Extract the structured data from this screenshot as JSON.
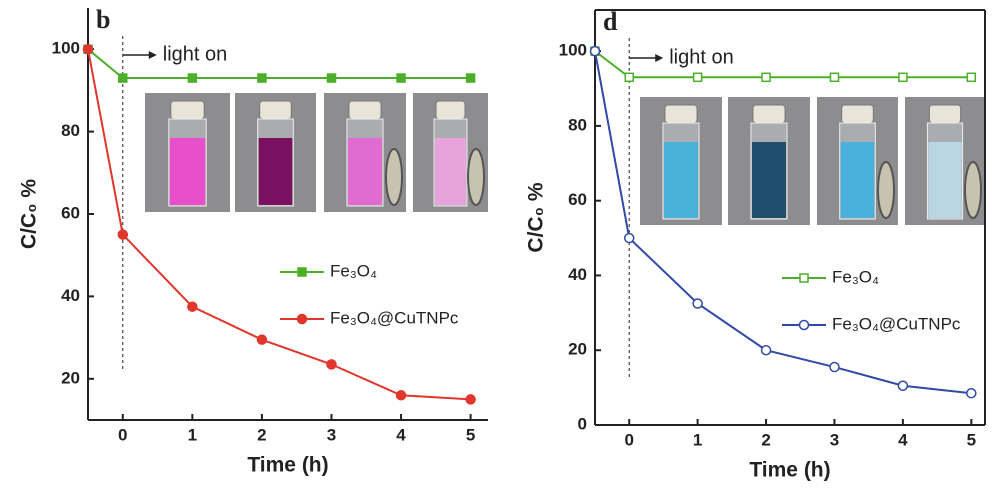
{
  "chart_data": [
    {
      "type": "line",
      "panel_label": "b",
      "annotation": "light on",
      "xlabel": "Time (h)",
      "ylabel": "C/C₀ %",
      "x": [
        -0.5,
        0,
        1,
        2,
        3,
        4,
        5
      ],
      "xlim": [
        -0.5,
        5.25
      ],
      "xticks": [
        0,
        1,
        2,
        3,
        4,
        5
      ],
      "ylim": [
        10,
        110
      ],
      "yticks": [
        20,
        40,
        60,
        80,
        100
      ],
      "series": [
        {
          "name": "Fe₃O₄",
          "color": "#4caf2a",
          "marker": "square",
          "marker_fill": "filled",
          "values": [
            100,
            93,
            93,
            93,
            93,
            93,
            93
          ]
        },
        {
          "name": "Fe₃O₄@CuTNPc",
          "color": "#e0362c",
          "marker": "circle",
          "marker_fill": "filled",
          "values": [
            100,
            55,
            37.5,
            29.5,
            23.5,
            16,
            15
          ]
        }
      ]
    },
    {
      "type": "line",
      "panel_label": "d",
      "annotation": "light on",
      "xlabel": "Time (h)",
      "ylabel": "C/C₀ %",
      "x": [
        -0.5,
        0,
        1,
        2,
        3,
        4,
        5
      ],
      "xlim": [
        -0.5,
        5.2
      ],
      "xticks": [
        0,
        1,
        2,
        3,
        4,
        5
      ],
      "ylim": [
        0,
        111
      ],
      "yticks": [
        0,
        20,
        40,
        60,
        80,
        100
      ],
      "series": [
        {
          "name": "Fe₃O₄",
          "color": "#4caf2a",
          "marker": "square",
          "marker_fill": "open",
          "values": [
            100,
            93,
            93,
            93,
            93,
            93,
            93
          ]
        },
        {
          "name": "Fe₃O₄@CuTNPc",
          "color": "#2f4aa8",
          "marker": "circle",
          "marker_fill": "open",
          "values": [
            100,
            50,
            32.5,
            20,
            15.5,
            10.5,
            8.5
          ]
        }
      ]
    }
  ]
}
